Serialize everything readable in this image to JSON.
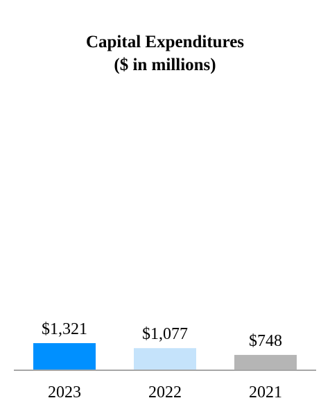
{
  "chart_data": {
    "type": "bar",
    "title": "Capital Expenditures",
    "subtitle": "($ in millions)",
    "categories": [
      "2023",
      "2022",
      "2021"
    ],
    "values": [
      1321,
      1077,
      748
    ],
    "value_labels": [
      "$1,321",
      "$1,077",
      "$748"
    ],
    "colors": [
      "#0090ff",
      "#c5e3fb",
      "#b5b5b5"
    ],
    "axis_color": "#a6a6a6",
    "xlabel": "",
    "ylabel": "",
    "grid": false
  }
}
